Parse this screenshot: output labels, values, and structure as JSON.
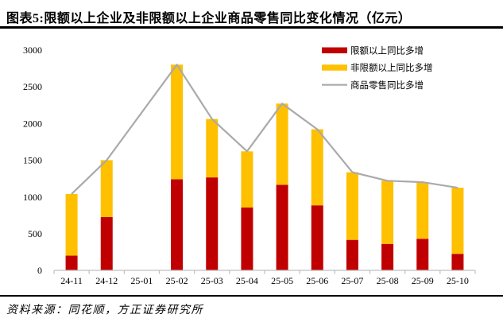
{
  "footer": {
    "source": "资料来源：同花顺，方正证券研究所"
  },
  "colors": {
    "bar_red": "#C00000",
    "bar_yellow": "#FFC000",
    "line_gray": "#AAAAAA",
    "axis_gray": "#BFBFBF",
    "rule_black": "#000000",
    "text_black": "#000000"
  },
  "chart_data": {
    "type": "bar",
    "subtype": "stacked-bars-with-total-line",
    "title": "图表5:限额以上企业及非限额以上企业商品零售同比变化情况（亿元）",
    "unit": "亿元",
    "categories": [
      "24-11",
      "24-12",
      "25-01",
      "25-02",
      "25-03",
      "25-04",
      "25-05",
      "25-06",
      "25-07",
      "25-08",
      "25-09",
      "25-10"
    ],
    "series": [
      {
        "name": "限额以上同比多增",
        "type": "bar",
        "color": "#C00000",
        "values": [
          200,
          725,
          null,
          1240,
          1265,
          855,
          1165,
          885,
          415,
          360,
          430,
          225
        ]
      },
      {
        "name": "非限额以上同比多增",
        "type": "bar",
        "color": "#FFC000",
        "values": [
          840,
          775,
          null,
          1560,
          795,
          765,
          1105,
          1035,
          920,
          860,
          770,
          900
        ]
      },
      {
        "name": "商品零售同比多增",
        "type": "line",
        "color": "#AAAAAA",
        "values": [
          1040,
          1500,
          null,
          2800,
          2060,
          1620,
          2270,
          1920,
          1335,
          1220,
          1200,
          1125
        ]
      }
    ],
    "stacked": true,
    "ylim": [
      0,
      3000
    ],
    "yticks": [
      0,
      500,
      1000,
      1500,
      2000,
      2500,
      3000
    ],
    "xlabel": "",
    "ylabel": "",
    "grid": false,
    "legend_position": "top-right"
  }
}
